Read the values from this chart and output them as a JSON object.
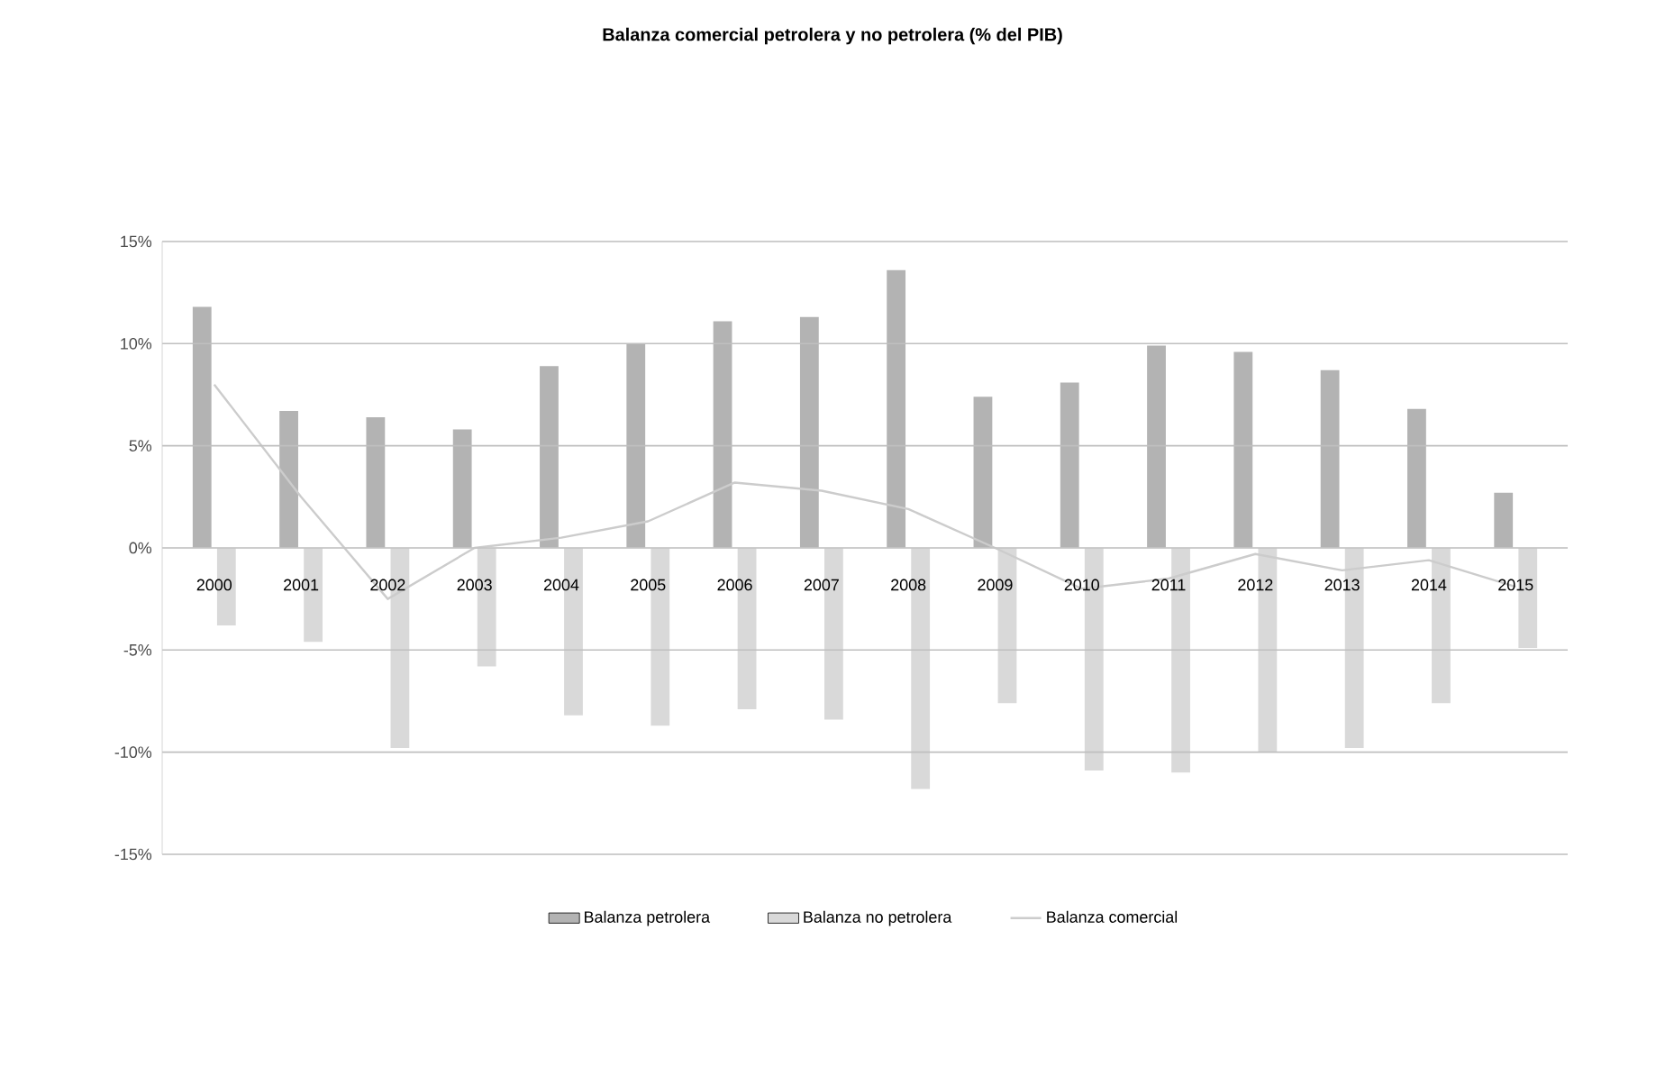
{
  "chart_data": {
    "type": "bar",
    "title": "Balanza comercial petrolera y no petrolera (% del PIB)",
    "categories": [
      "2000",
      "2001",
      "2002",
      "2003",
      "2004",
      "2005",
      "2006",
      "2007",
      "2008",
      "2009",
      "2010",
      "2011",
      "2012",
      "2013",
      "2014",
      "2015"
    ],
    "series": [
      {
        "name": "Balanza petrolera",
        "color": "#b3b3b3",
        "values": [
          11.8,
          6.7,
          6.4,
          5.8,
          8.9,
          10.0,
          11.1,
          11.3,
          13.6,
          7.4,
          8.1,
          9.9,
          9.6,
          8.7,
          6.8,
          2.7
        ]
      },
      {
        "name": "Balanza no petrolera",
        "color": "#d9d9d9",
        "values": [
          -3.8,
          -4.6,
          -9.8,
          -5.8,
          -8.2,
          -8.7,
          -7.9,
          -8.4,
          -11.8,
          -7.6,
          -10.9,
          -11.0,
          -10.0,
          -9.8,
          -7.6,
          -4.9
        ]
      },
      {
        "name": "Balanza comercial",
        "type": "line",
        "color": "#cccccc",
        "values": [
          8.0,
          2.5,
          -2.5,
          0.0,
          0.5,
          1.3,
          3.2,
          2.8,
          1.9,
          0.0,
          -2.0,
          -1.5,
          -0.3,
          -1.1,
          -0.6,
          -1.9
        ]
      }
    ],
    "ylim": [
      -15,
      15
    ],
    "yticks": [
      {
        "value": -15,
        "label": "-15%"
      },
      {
        "value": -10,
        "label": "-10%"
      },
      {
        "value": -5,
        "label": "-5%"
      },
      {
        "value": 0,
        "label": "0%"
      },
      {
        "value": 5,
        "label": "5%"
      },
      {
        "value": 10,
        "label": "10%"
      },
      {
        "value": 15,
        "label": "15%"
      }
    ],
    "grid": "y",
    "legend": "bottom"
  }
}
